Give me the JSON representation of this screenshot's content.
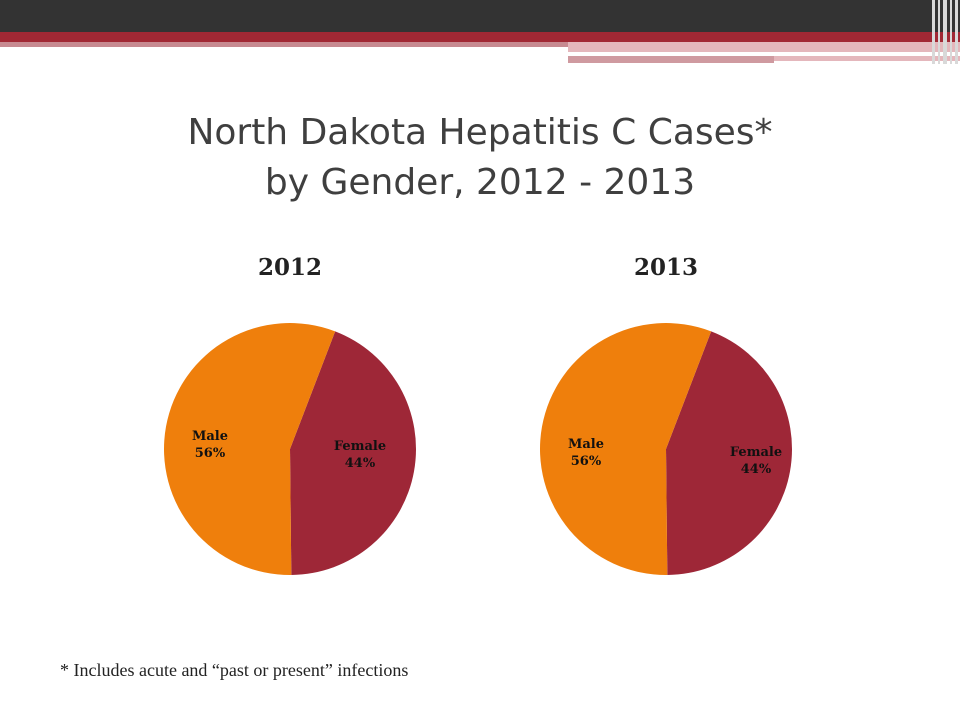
{
  "title_line1": "North Dakota Hepatitis C Cases*",
  "title_line2": "by Gender, 2012 - 2013",
  "footnote": "* Includes acute and “past or present” infections",
  "chart_data": [
    {
      "type": "pie",
      "title": "2012",
      "slices": [
        {
          "label": "Male",
          "value": 56,
          "display": "56%",
          "color": "#ef7f0c"
        },
        {
          "label": "Female",
          "value": 44,
          "display": "44%",
          "color": "#9e2737"
        }
      ]
    },
    {
      "type": "pie",
      "title": "2013",
      "slices": [
        {
          "label": "Male",
          "value": 56,
          "display": "56%",
          "color": "#ef7f0c"
        },
        {
          "label": "Female",
          "value": 44,
          "display": "44%",
          "color": "#9e2737"
        }
      ]
    }
  ]
}
